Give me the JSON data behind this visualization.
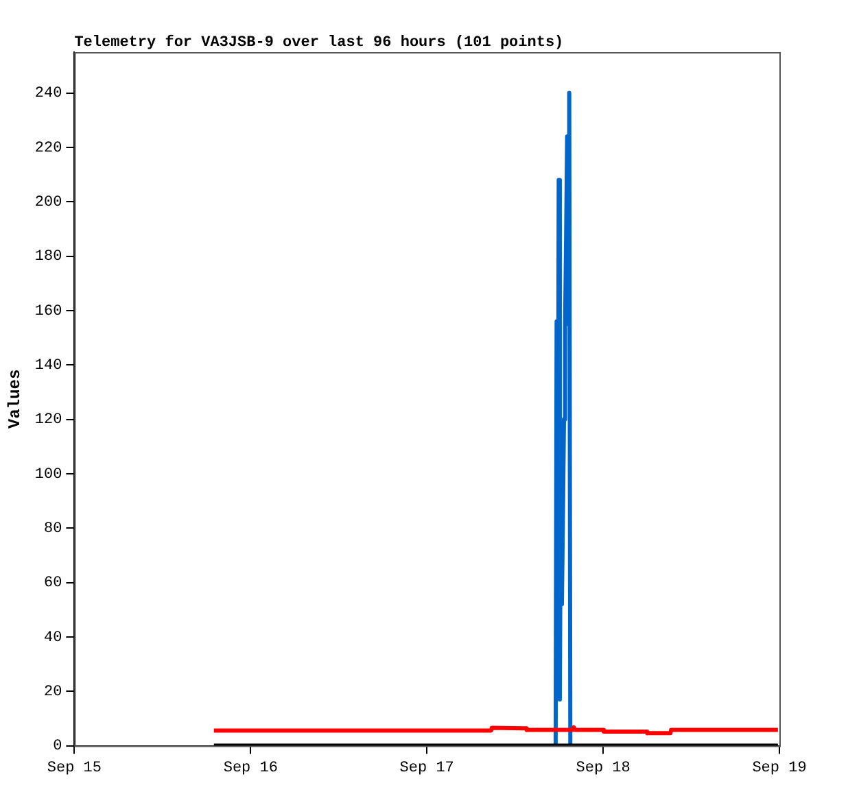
{
  "chart_data": {
    "type": "line",
    "title": "Telemetry for VA3JSB-9 over last 96 hours (101 points)",
    "ylabel": "Values",
    "xlim": [
      "--09-15",
      "--09-19"
    ],
    "xticks": [
      {
        "value": "--09-15",
        "label": "Sep 15"
      },
      {
        "value": "--09-16",
        "label": "Sep 16"
      },
      {
        "value": "--09-17",
        "label": "Sep 17"
      },
      {
        "value": "--09-18",
        "label": "Sep 18"
      },
      {
        "value": "--09-19",
        "label": "Sep 19"
      }
    ],
    "ylim": [
      0,
      255
    ],
    "yticks": [
      0,
      20,
      40,
      60,
      80,
      100,
      120,
      140,
      160,
      180,
      200,
      220,
      240
    ],
    "grid": false,
    "legend": false,
    "marker": "none",
    "line_style": "solid",
    "series": [
      {
        "color": "#ff0000",
        "x": [
          "--09-15T19:00",
          "--09-17T08:45",
          "--09-17T08:50",
          "--09-17T13:30",
          "--09-17T13:35",
          "--09-17T19:50",
          "--09-17T20:00",
          "--09-17T20:10",
          "--09-18T00:00",
          "--09-18T00:05",
          "--09-18T05:55",
          "--09-18T06:00",
          "--09-18T09:10",
          "--09-18T09:15",
          "--09-18T23:48"
        ],
        "values": [
          5.6,
          5.6,
          6.6,
          6.4,
          5.8,
          5.8,
          6.8,
          5.8,
          5.8,
          5.2,
          5.2,
          4.6,
          4.6,
          5.8,
          5.8
        ]
      },
      {
        "color": "#000000",
        "x": [
          "--09-15T19:00",
          "--09-18T23:48"
        ],
        "values": [
          0,
          0
        ]
      },
      {
        "color": "#0066cc",
        "x": [
          "--09-17T17:32",
          "--09-17T17:40",
          "--09-17T17:49",
          "--09-17T17:57",
          "--09-17T18:06",
          "--09-17T18:15",
          "--09-17T18:23",
          "--09-17T18:32",
          "--09-17T18:40",
          "--09-17T18:49",
          "--09-17T18:58",
          "--09-17T19:06",
          "--09-17T19:15",
          "--09-17T19:23",
          "--09-17T19:32"
        ],
        "values": [
          0,
          156,
          52,
          208,
          17,
          104,
          52,
          86,
          120,
          154,
          189,
          224,
          155,
          240,
          0
        ]
      }
    ]
  }
}
